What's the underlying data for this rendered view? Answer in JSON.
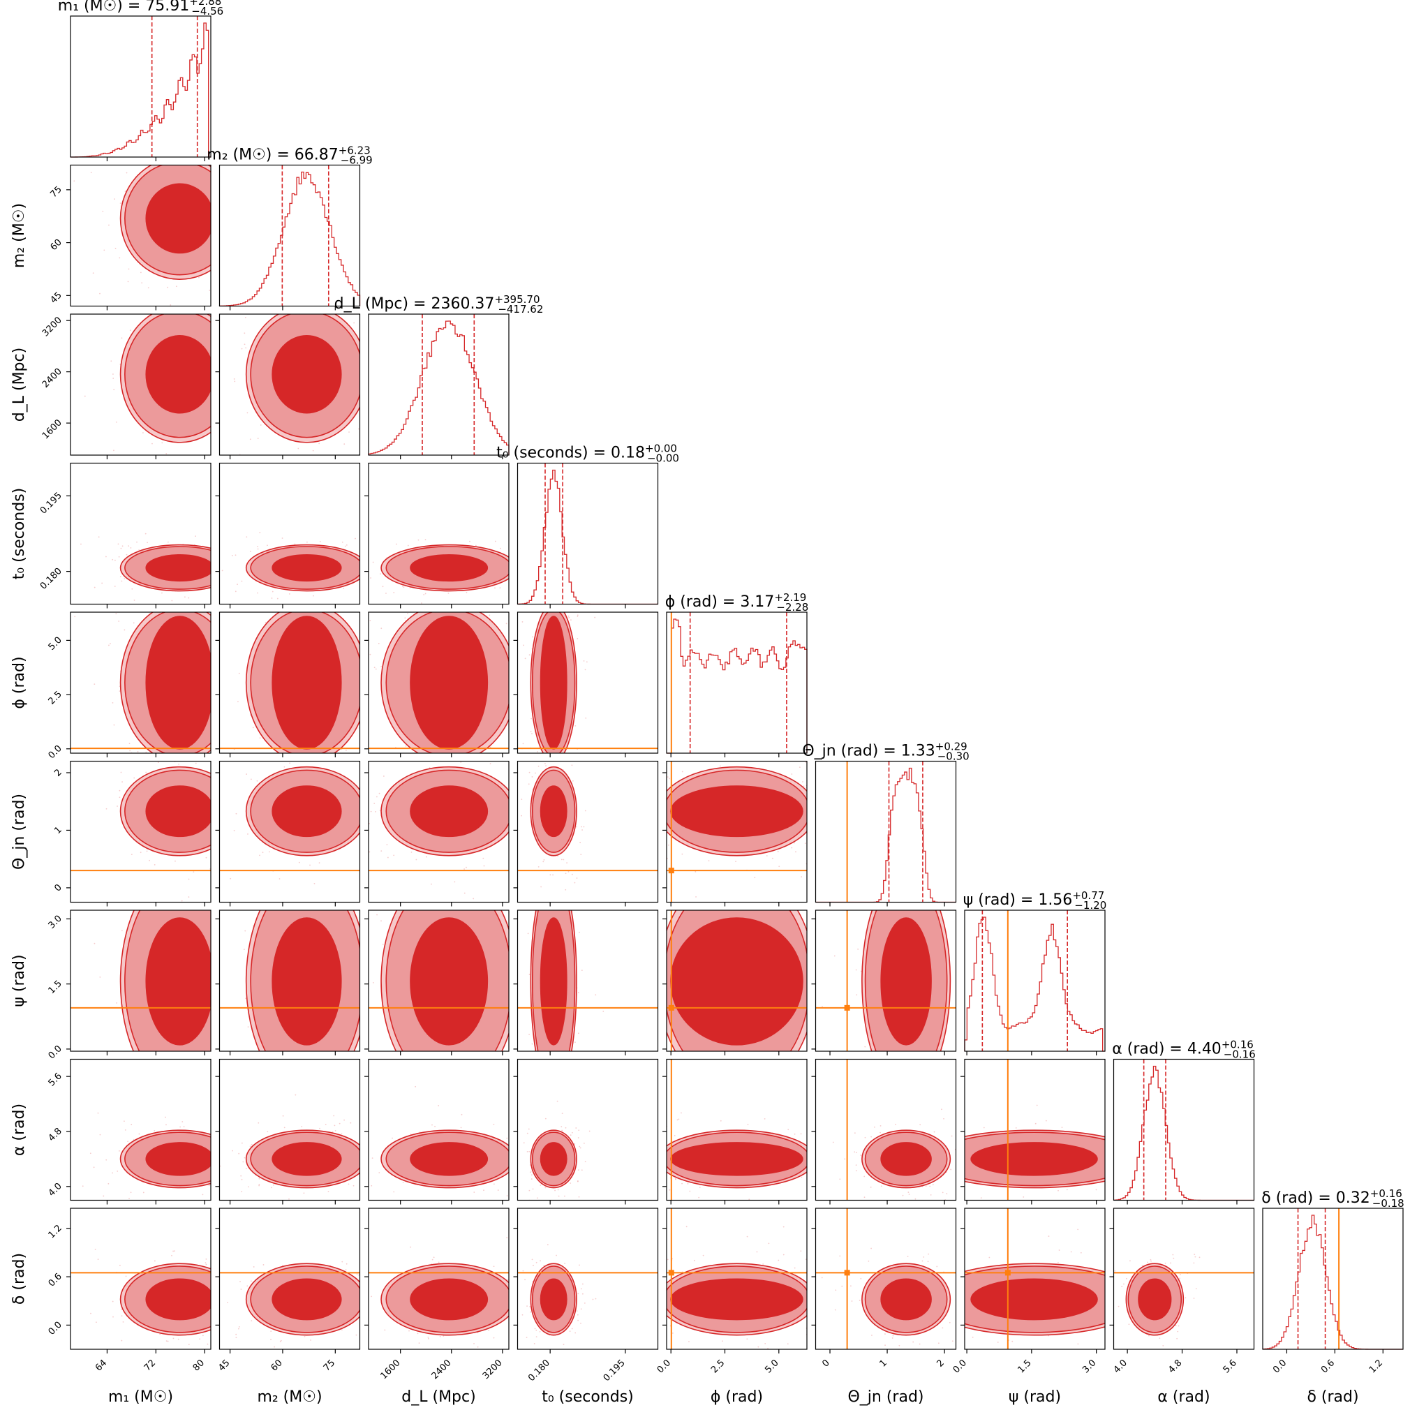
{
  "chart_data": {
    "type": "corner",
    "colors": {
      "posterior": "#d62728",
      "contour_inner": "#d62728",
      "contour_outer": "#ec9a9b",
      "truth": "#ff7f0e",
      "frame": "#000000"
    },
    "parameters": [
      {
        "key": "m1",
        "label": "m₁ (M☉)",
        "title": "m₁ (M☉) = 75.91",
        "err_plus": "+2.88",
        "err_minus": "−4.56",
        "range": [
          58,
          81
        ],
        "ticks": [
          64,
          72,
          80
        ],
        "tick_labels": [
          "64",
          "72",
          "80"
        ],
        "median": 75.91,
        "lo": 71.35,
        "hi": 78.79,
        "truth": null,
        "hist_shape": "skew_right"
      },
      {
        "key": "m2",
        "label": "m₂ (M☉)",
        "title": "m₂ (M☉) = 66.87",
        "err_plus": "+6.23",
        "err_minus": "−6.99",
        "range": [
          42,
          82
        ],
        "ticks": [
          45,
          60,
          75
        ],
        "tick_labels": [
          "45",
          "60",
          "75"
        ],
        "median": 66.87,
        "lo": 59.88,
        "hi": 73.1,
        "truth": null,
        "hist_shape": "gauss"
      },
      {
        "key": "dL",
        "label": "d_L (Mpc)",
        "title": "d_L (Mpc) = 2360.37",
        "err_plus": "+395.70",
        "err_minus": "−417.62",
        "range": [
          1100,
          3300
        ],
        "ticks": [
          1600,
          2400,
          3200
        ],
        "tick_labels": [
          "1600",
          "2400",
          "3200"
        ],
        "median": 2360.37,
        "lo": 1942.75,
        "hi": 2756.07,
        "truth": null,
        "hist_shape": "gauss"
      },
      {
        "key": "t0",
        "label": "t₀ (seconds)",
        "title": "t₀ (seconds) = 0.18",
        "err_plus": "+0.00",
        "err_minus": "−0.00",
        "range": [
          0.1735,
          0.2015
        ],
        "ticks": [
          0.18,
          0.195
        ],
        "tick_labels": [
          "0.180",
          "0.195"
        ],
        "median": 0.1807,
        "lo": 0.179,
        "hi": 0.1825,
        "truth": null,
        "hist_shape": "gauss"
      },
      {
        "key": "phi",
        "label": "ϕ (rad)",
        "title": "ϕ (rad) = 3.17",
        "err_plus": "+2.19",
        "err_minus": "−2.28",
        "range": [
          -0.2,
          6.3
        ],
        "ticks": [
          0.0,
          2.5,
          5.0
        ],
        "tick_labels": [
          "0.0",
          "2.5",
          "5.0"
        ],
        "median": 3.17,
        "lo": 0.89,
        "hi": 5.36,
        "truth": 0.02,
        "hist_shape": "flat"
      },
      {
        "key": "theta_jn",
        "label": "Θ_jn (rad)",
        "title": "Θ_jn (rad) = 1.33",
        "err_plus": "+0.29",
        "err_minus": "−0.30",
        "range": [
          -0.25,
          2.2
        ],
        "ticks": [
          0,
          1,
          2
        ],
        "tick_labels": [
          "0",
          "1",
          "2"
        ],
        "median": 1.33,
        "lo": 1.03,
        "hi": 1.62,
        "truth": 0.3,
        "hist_shape": "plateau"
      },
      {
        "key": "psi",
        "label": "ψ (rad)",
        "title": "ψ (rad) = 1.56",
        "err_plus": "+0.77",
        "err_minus": "−1.20",
        "range": [
          -0.05,
          3.2
        ],
        "ticks": [
          0.0,
          1.5,
          3.0
        ],
        "tick_labels": [
          "0.0",
          "1.5",
          "3.0"
        ],
        "median": 1.56,
        "lo": 0.36,
        "hi": 2.33,
        "truth": 0.95,
        "hist_shape": "bimodal"
      },
      {
        "key": "alpha",
        "label": "α (rad)",
        "title": "α (rad) = 4.40",
        "err_plus": "+0.16",
        "err_minus": "−0.16",
        "range": [
          3.8,
          5.85
        ],
        "ticks": [
          4.0,
          4.8,
          5.6
        ],
        "tick_labels": [
          "4.0",
          "4.8",
          "5.6"
        ],
        "median": 4.4,
        "lo": 4.24,
        "hi": 4.56,
        "truth": null,
        "hist_shape": "gauss"
      },
      {
        "key": "delta",
        "label": "δ (rad)",
        "title": "δ (rad) = 0.32",
        "err_plus": "+0.16",
        "err_minus": "−0.18",
        "range": [
          -0.3,
          1.45
        ],
        "ticks": [
          0.0,
          0.6,
          1.2
        ],
        "tick_labels": [
          "0.0",
          "0.6",
          "1.2"
        ],
        "median": 0.32,
        "lo": 0.14,
        "hi": 0.48,
        "truth": 0.65,
        "hist_shape": "gauss"
      }
    ]
  }
}
